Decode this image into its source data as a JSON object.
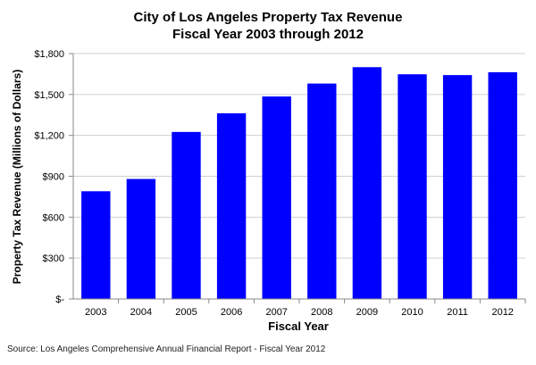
{
  "chart_data": {
    "type": "bar",
    "title": [
      "City of Los Angeles Property Tax Revenue",
      "Fiscal Year 2003 through 2012"
    ],
    "xlabel": "Fiscal Year",
    "ylabel": "Property Tax Revenue (Millions of Dollars)",
    "categories": [
      "2003",
      "2004",
      "2005",
      "2006",
      "2007",
      "2008",
      "2009",
      "2010",
      "2011",
      "2012"
    ],
    "values": [
      790,
      880,
      1225,
      1362,
      1485,
      1580,
      1700,
      1648,
      1642,
      1663
    ],
    "ylim": [
      0,
      1800
    ],
    "yticks": [
      0,
      300,
      600,
      900,
      1200,
      1500,
      1800
    ],
    "ytick_labels": [
      "$-",
      "$300",
      "$600",
      "$900",
      "$1,200",
      "$1,500",
      "$1,800"
    ],
    "grid": true,
    "legend": "none",
    "colors": {
      "bar": "#0000ff",
      "grid": "#cfcfcf",
      "axis": "#888888"
    }
  },
  "source": "Source: Los Angeles Comprehensive Annual Financial Report - Fiscal Year 2012"
}
